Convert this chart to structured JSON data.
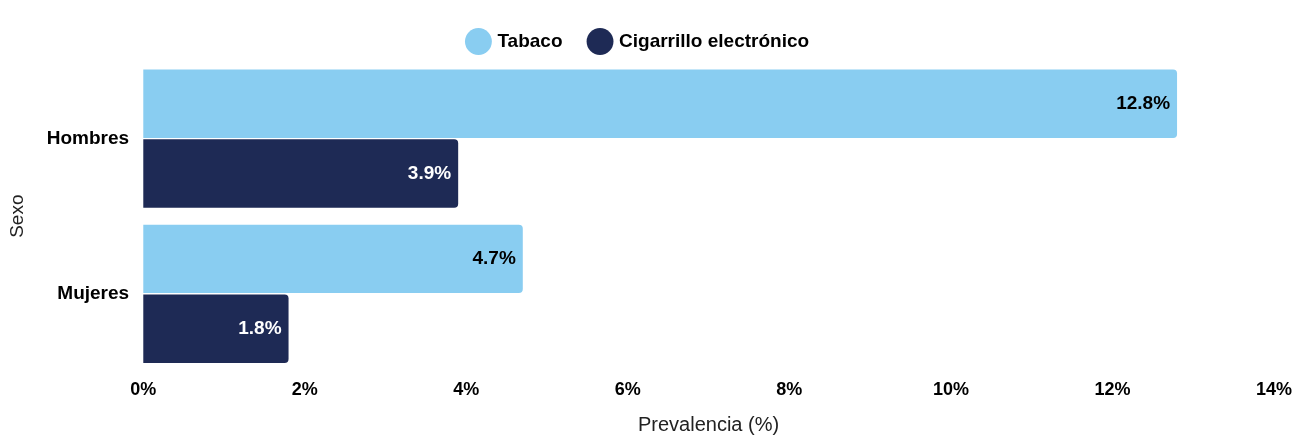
{
  "chart_data": {
    "type": "bar",
    "orientation": "horizontal",
    "categories": [
      "Hombres",
      "Mujeres"
    ],
    "series": [
      {
        "name": "Tabaco",
        "color": "#89cdf1",
        "values": [
          12.8,
          4.7
        ],
        "value_labels": [
          "12.8%",
          "4.7%"
        ]
      },
      {
        "name": "Cigarrillo electrónico",
        "color": "#1e2a55",
        "values": [
          3.9,
          1.8
        ],
        "value_labels": [
          "3.9%",
          "1.8%"
        ]
      }
    ],
    "xlim": [
      0,
      14
    ],
    "xticks": [
      {
        "value": 0,
        "label": "0%"
      },
      {
        "value": 2,
        "label": "2%"
      },
      {
        "value": 4,
        "label": "4%"
      },
      {
        "value": 6,
        "label": "6%"
      },
      {
        "value": 8,
        "label": "8%"
      },
      {
        "value": 10,
        "label": "10%"
      },
      {
        "value": 12,
        "label": "12%"
      },
      {
        "value": 14,
        "label": "14%"
      }
    ],
    "xlabel": "Prevalencia (%)",
    "ylabel": "Sexo",
    "legend": "top",
    "grid": false
  }
}
